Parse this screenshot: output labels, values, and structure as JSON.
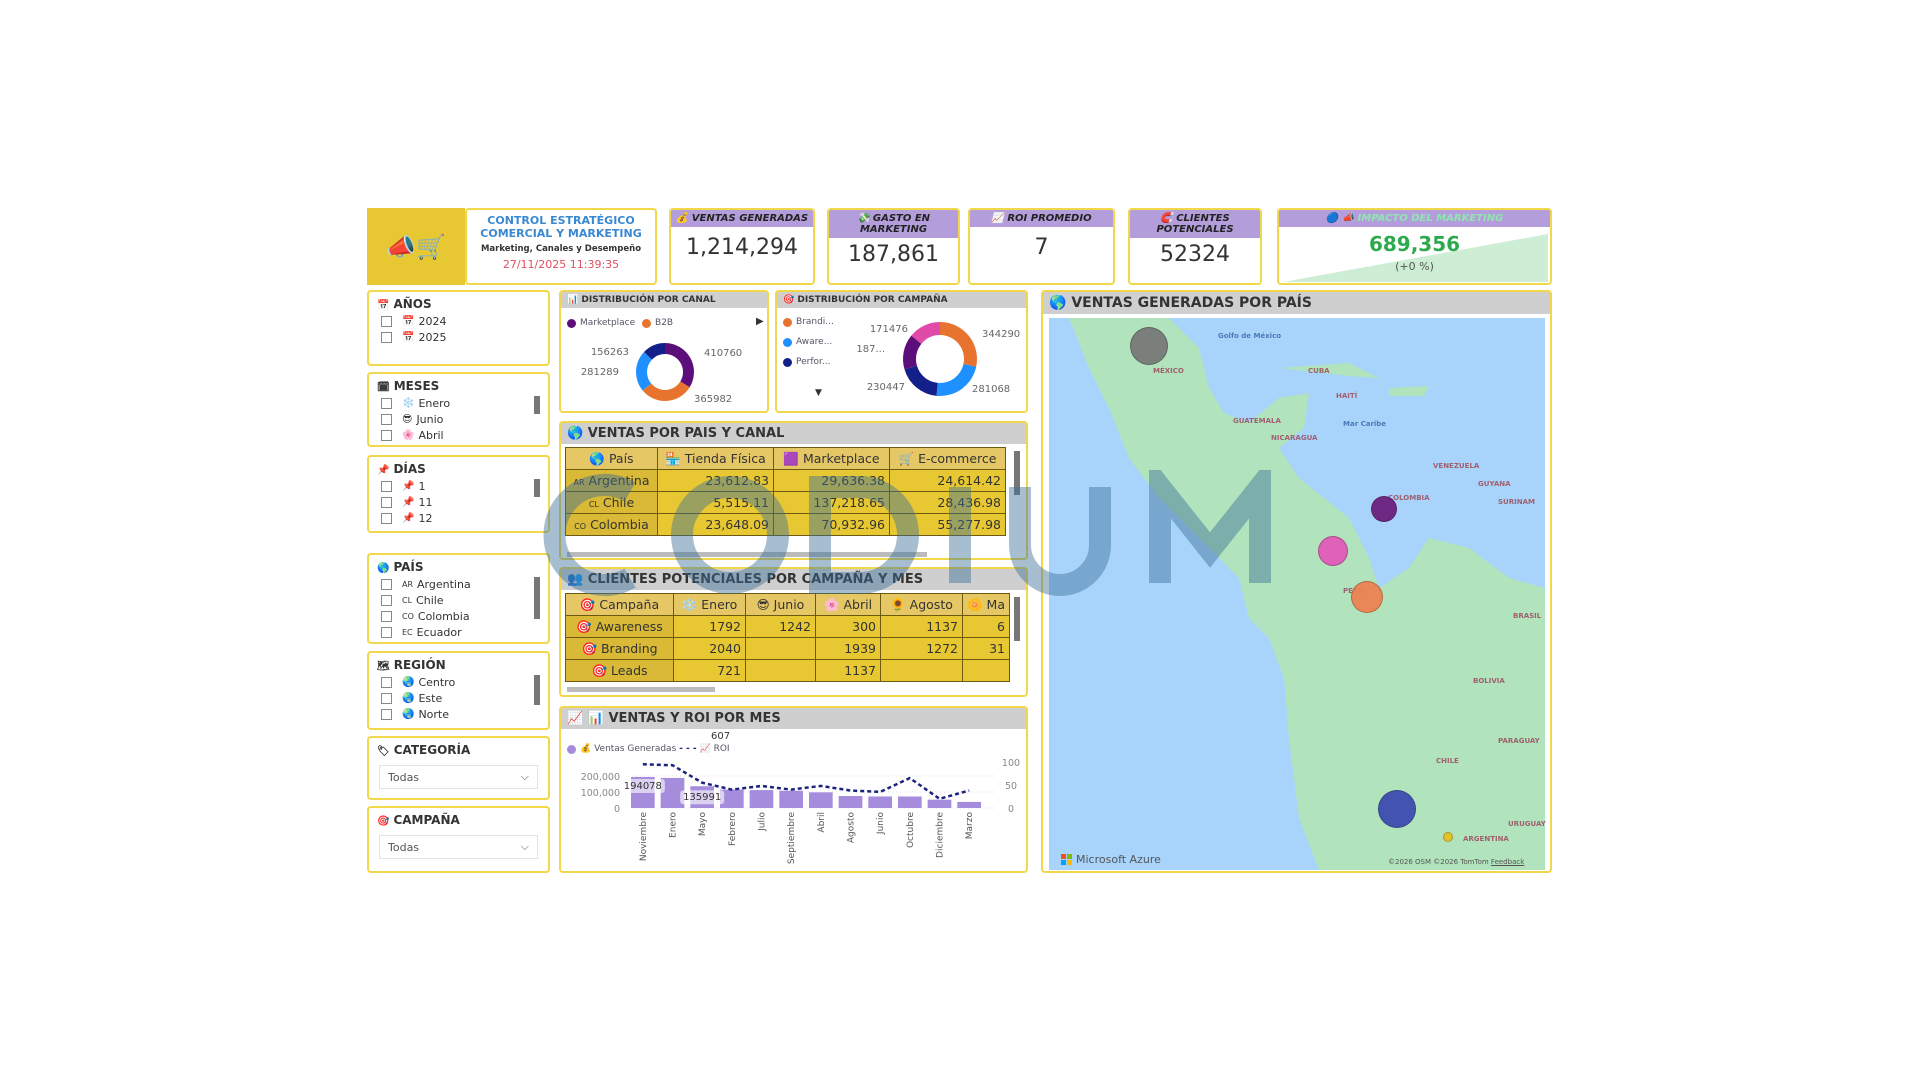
{
  "header": {
    "title_line1": "CONTROL ESTRATÉGICO",
    "title_line2": "COMERCIAL Y MARKETING",
    "subtitle": "Marketing, Canales y Desempeño",
    "datetime": "27/11/2025  11:39:35"
  },
  "kpis": [
    {
      "label": "💰 VENTAS GENERADAS",
      "value": "1,214,294"
    },
    {
      "label": "💸 GASTO EN MARKETING",
      "value": "187,861"
    },
    {
      "label": "📈 ROI PROMEDIO",
      "value": "7"
    },
    {
      "label": "🧲 CLIENTES POTENCIALES",
      "value": "52324"
    },
    {
      "label": "🔵 📣 IMPACTO DEL MARKETING",
      "value": "689,356",
      "delta": "(+0 %)"
    }
  ],
  "colors": {
    "accent": "#e8c832",
    "kpi_header": "#b39ddb",
    "impact_green": "#2eaa4e",
    "date_red": "#e05060",
    "title_blue": "#3a88d0"
  },
  "slicers": {
    "anios": {
      "title": "AÑOS",
      "items": [
        "2024",
        "2025"
      ]
    },
    "meses": {
      "title": "MESES",
      "items": [
        "Enero",
        "Junio",
        "Abril"
      ]
    },
    "dias": {
      "title": "DÍAS",
      "items": [
        "1",
        "11",
        "12"
      ]
    },
    "pais": {
      "title": "PAÍS",
      "items": [
        {
          "code": "AR",
          "name": "Argentina"
        },
        {
          "code": "CL",
          "name": "Chile"
        },
        {
          "code": "CO",
          "name": "Colombia"
        },
        {
          "code": "EC",
          "name": "Ecuador"
        }
      ]
    },
    "region": {
      "title": "REGIÓN",
      "items": [
        "Centro",
        "Este",
        "Norte"
      ]
    },
    "categoria": {
      "title": "CATEGORÍA",
      "value": "Todas"
    },
    "campana": {
      "title": "CAMPAÑA",
      "value": "Todas"
    }
  },
  "chart_data": [
    {
      "type": "pie",
      "title": "DISTRIBUCIÓN POR CANAL",
      "legend": [
        "Marketplace",
        "B2B"
      ],
      "values": [
        410760,
        365982,
        281289,
        156263
      ],
      "colors": [
        "#5c0f7a",
        "#e8732e",
        "#1e90ff",
        "#13208a"
      ]
    },
    {
      "type": "pie",
      "title": "DISTRIBUCIÓN POR CAMPAÑA",
      "legend": [
        "Brandi...",
        "Aware...",
        "Perfor..."
      ],
      "values": [
        344290,
        281068,
        230447,
        187000,
        171476
      ],
      "labels": [
        "344290",
        "281068",
        "230447",
        "187...",
        "171476"
      ],
      "colors": [
        "#e8732e",
        "#1e90ff",
        "#13208a",
        "#5c0f7a",
        "#e04aa8"
      ]
    },
    {
      "type": "bar",
      "title": "VENTAS Y ROI POR MES",
      "legend": [
        "Ventas Generadas",
        "ROI"
      ],
      "categories": [
        "Noviembre",
        "Enero",
        "Mayo",
        "Febrero",
        "Julio",
        "Septiembre",
        "Abril",
        "Agosto",
        "Junio",
        "Octubre",
        "Diciembre",
        "Marzo"
      ],
      "series": [
        {
          "name": "Ventas Generadas",
          "values": [
            194078,
            188000,
            135991,
            115000,
            112000,
            108000,
            98000,
            75000,
            72000,
            72000,
            52000,
            38000
          ]
        },
        {
          "name": "ROI",
          "values": [
            95,
            93,
            55,
            40,
            48,
            40,
            48,
            38,
            35,
            65,
            20,
            38
          ]
        }
      ],
      "data_labels": [
        "194078",
        "135991"
      ],
      "annotation": "607",
      "y_ticks": [
        "0",
        "100,000",
        "200,000"
      ],
      "y2_ticks": [
        "0",
        "50",
        "100"
      ],
      "ylim": [
        0,
        230000
      ],
      "y2lim": [
        0,
        110
      ]
    }
  ],
  "table_canal": {
    "title": "VENTAS POR PAIS Y CANAL",
    "columns": [
      "País",
      "Tienda Física",
      "Marketplace",
      "E-commerce"
    ],
    "rows": [
      {
        "code": "AR",
        "name": "Argentina",
        "v": [
          "23,612.83",
          "29,636.38",
          "24,614.42"
        ]
      },
      {
        "code": "CL",
        "name": "Chile",
        "v": [
          "5,515.11",
          "137,218.65",
          "28,436.98"
        ]
      },
      {
        "code": "CO",
        "name": "Colombia",
        "v": [
          "23,648.09",
          "70,932.96",
          "55,277.98"
        ]
      }
    ]
  },
  "table_clientes": {
    "title": "CLIENTES POTENCIALES POR CAMPAÑA Y MES",
    "columns": [
      "Campaña",
      "Enero",
      "Junio",
      "Abril",
      "Agosto",
      "Ma"
    ],
    "rows": [
      {
        "name": "Awareness",
        "v": [
          "1792",
          "1242",
          "300",
          "1137",
          "6"
        ]
      },
      {
        "name": "Branding",
        "v": [
          "2040",
          "",
          "1939",
          "1272",
          "31"
        ]
      },
      {
        "name": "Leads",
        "v": [
          "721",
          "",
          "1137",
          "",
          ""
        ]
      }
    ]
  },
  "map": {
    "title": "VENTAS GENERADAS POR PAÍS",
    "labels": [
      "Golfo de México",
      "CUBA",
      "HAITÍ",
      "GUATEMALA",
      "NICARAGUA",
      "Mar Caribe",
      "VENEZUELA",
      "GUYANA",
      "SURINAM",
      "PERÚ",
      "BRASIL",
      "BOLIVIA",
      "PARAGUAY",
      "CHILE",
      "URUGUAY",
      "ARGENTINA",
      "MÉXICO",
      "COLOMBIA"
    ],
    "brand": "Microsoft Azure",
    "attribution": "©2026 OSM  ©2026 TomTom",
    "feedback": "Feedback",
    "bubbles": [
      {
        "color": "#777777"
      },
      {
        "color": "#6a1b7a"
      },
      {
        "color": "#e457b8"
      },
      {
        "color": "#ee8050"
      },
      {
        "color": "#3a48b0"
      },
      {
        "color": "#e8c020"
      }
    ]
  },
  "watermark": "CODIUM"
}
